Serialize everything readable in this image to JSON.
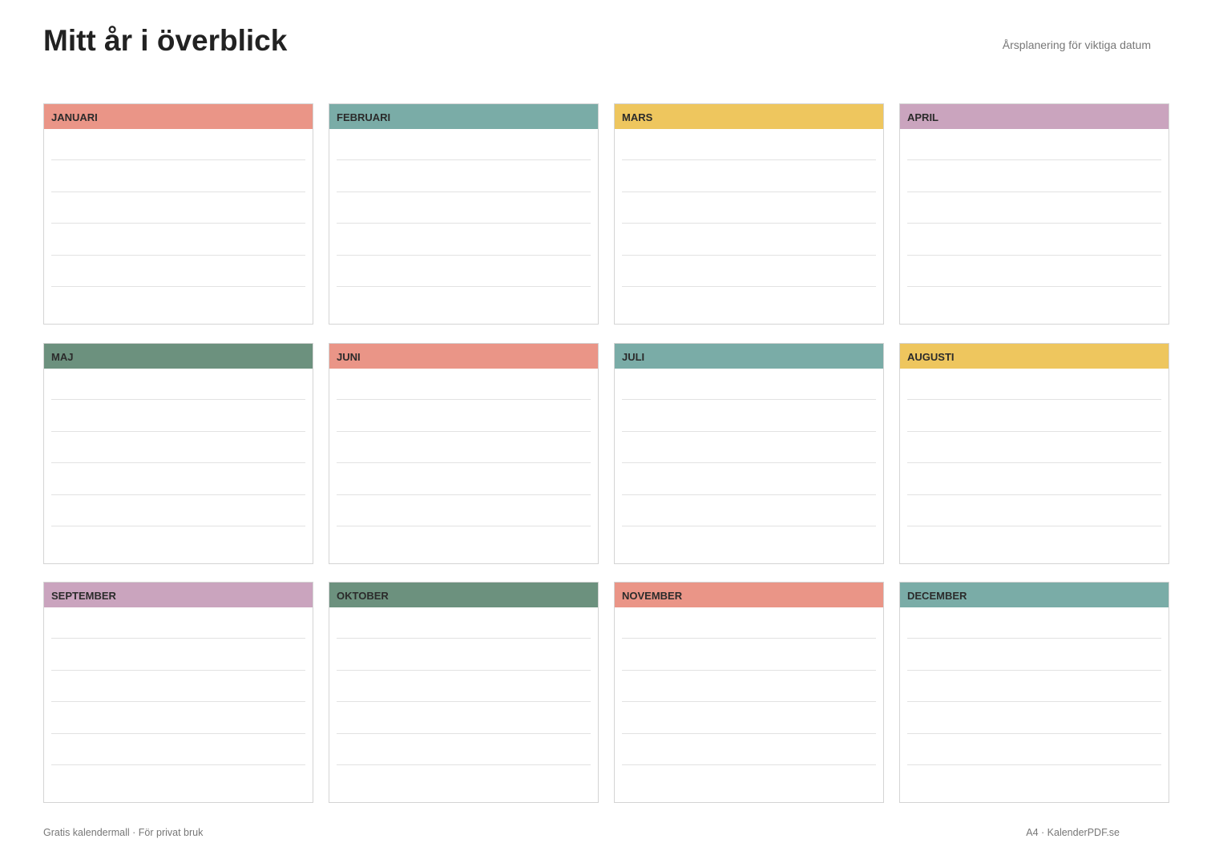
{
  "header": {
    "title": "Mitt år i överblick",
    "subtitle": "Årsplanering för viktiga datum"
  },
  "months": [
    {
      "name": "JANUARI",
      "color": "#ea9587"
    },
    {
      "name": "FEBRUARI",
      "color": "#7aaca7"
    },
    {
      "name": "MARS",
      "color": "#eec65e"
    },
    {
      "name": "APRIL",
      "color": "#caa4be"
    },
    {
      "name": "MAJ",
      "color": "#6c917e"
    },
    {
      "name": "JUNI",
      "color": "#ea9587"
    },
    {
      "name": "JULI",
      "color": "#7aaca7"
    },
    {
      "name": "AUGUSTI",
      "color": "#eec65e"
    },
    {
      "name": "SEPTEMBER",
      "color": "#caa4be"
    },
    {
      "name": "OKTOBER",
      "color": "#6c917e"
    },
    {
      "name": "NOVEMBER",
      "color": "#ea9587"
    },
    {
      "name": "DECEMBER",
      "color": "#7aaca7"
    }
  ],
  "footer": {
    "left": "Gratis kalendermall · För privat bruk",
    "right": "A4 · KalenderPDF.se"
  }
}
